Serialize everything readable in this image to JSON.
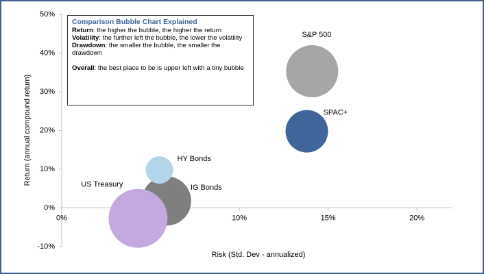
{
  "chart_data": {
    "type": "bubble",
    "xlabel": "Risk (Std. Dev - annualized)",
    "ylabel": "Return (annual compound return)",
    "xlim": [
      0,
      22
    ],
    "ylim": [
      -10,
      50
    ],
    "xticks": [
      {
        "value": 0,
        "label": "0%"
      },
      {
        "value": 5,
        "label": "5%"
      },
      {
        "value": 10,
        "label": "10%"
      },
      {
        "value": 15,
        "label": "15%"
      },
      {
        "value": 20,
        "label": "20%"
      }
    ],
    "yticks": [
      {
        "value": -10,
        "label": "-10%"
      },
      {
        "value": 0,
        "label": "0%"
      },
      {
        "value": 10,
        "label": "10%"
      },
      {
        "value": 20,
        "label": "20%"
      },
      {
        "value": 30,
        "label": "30%"
      },
      {
        "value": 40,
        "label": "40%"
      },
      {
        "value": 50,
        "label": "50%"
      }
    ],
    "series": [
      {
        "name": "S&P 500",
        "color": "#a6a6a6",
        "x": [
          14.1
        ],
        "values": [
          35.3
        ],
        "sizes": [
          38
        ]
      },
      {
        "name": "SPAC+",
        "color": "#3f659b",
        "x": [
          13.8
        ],
        "values": [
          19.8
        ],
        "sizes": [
          31
        ]
      },
      {
        "name": "IG Bonds",
        "color": "#7f7f7f",
        "x": [
          5.9
        ],
        "values": [
          1.8
        ],
        "sizes": [
          36
        ]
      },
      {
        "name": "HY Bonds",
        "color": "#b3d5ea",
        "x": [
          5.5
        ],
        "values": [
          9.8
        ],
        "sizes": [
          20
        ]
      },
      {
        "name": "US Treasury",
        "color": "#c3a9e0",
        "x": [
          4.3
        ],
        "values": [
          -2.7
        ],
        "sizes": [
          43
        ]
      }
    ],
    "annotation": {
      "title": "Comparison Bubble Chart Explained",
      "items": [
        {
          "term": "Return",
          "text": ": the higher the bubble, the higher the return"
        },
        {
          "term": "Volatility",
          "text": ": the further left the bubble, the lower the volatility"
        },
        {
          "term": "Drawdown",
          "text": ": the smaller the bubble, the smaller the drawdown"
        },
        {
          "term": "Overall",
          "text": ": the best place to be is upper left with a tiny bubble"
        }
      ]
    }
  }
}
